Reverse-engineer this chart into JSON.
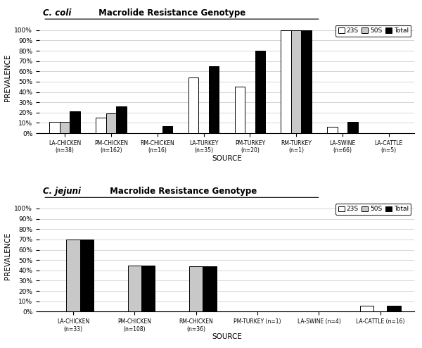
{
  "coli": {
    "title_italic": "C. coli",
    "title_rest": " Macrolide Resistance Genotype",
    "categories": [
      "LA-CHICKEN\n(n=38)",
      "PM-CHICKEN\n(n=162)",
      "RM-CHICKEN\n(n=16)",
      "LA-TURKEY\n(n=35)",
      "PM-TURKEY\n(n=20)",
      "RM-TURKEY\n(n=1)",
      "LA-SWINE\n(n=66)",
      "LA-CATTLE\n(n=5)"
    ],
    "val_23S": [
      11,
      15,
      0,
      54,
      45,
      100,
      6,
      0
    ],
    "val_50S": [
      11,
      19,
      0,
      0,
      0,
      100,
      0,
      0
    ],
    "val_total": [
      21,
      26,
      7,
      65,
      80,
      100,
      11,
      0
    ]
  },
  "jejuni": {
    "title_italic": "C. jejuni",
    "title_rest": " Macrolide Resistance Genotype",
    "categories": [
      "LA-CHICKEN\n(n=33)",
      "PM-CHICKEN\n(n=108)",
      "RM-CHICKEN\n(n=36)",
      "PM-TURKEY (n=1)",
      "LA-SWINE (n=4)",
      "LA-CATTLE (n=16)"
    ],
    "val_23S": [
      0,
      0,
      0,
      0,
      0,
      6
    ],
    "val_50S": [
      70,
      45,
      44,
      0,
      0,
      0
    ],
    "val_total": [
      70,
      45,
      44,
      0,
      0,
      6
    ]
  },
  "color_23S": "#ffffff",
  "color_50S": "#c8c8c8",
  "color_total": "#000000",
  "edgecolor": "#000000",
  "background": "#ffffff",
  "ylabel": "PREVALENCE",
  "xlabel": "SOURCE",
  "bar_width": 0.22,
  "yticks": [
    0,
    10,
    20,
    30,
    40,
    50,
    60,
    70,
    80,
    90,
    100
  ],
  "ytick_labels": [
    "0%",
    "10%",
    "20%",
    "30%",
    "40%",
    "50%",
    "60%",
    "70%",
    "80%",
    "90%",
    "100%"
  ]
}
